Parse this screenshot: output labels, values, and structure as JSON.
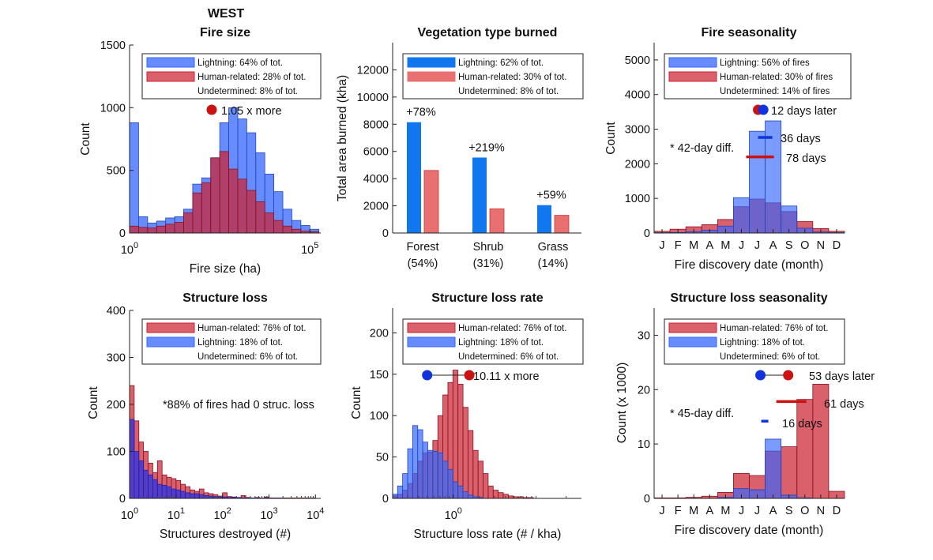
{
  "figure": {
    "title": "WEST",
    "colors": {
      "lightning": "#3366ff",
      "human": "#cc2233",
      "forest_bar": "#1177ee",
      "human_bar": "#e87070"
    }
  },
  "chart_data": [
    {
      "id": "fire_size",
      "type": "histogram",
      "title": "Fire size",
      "xlabel": "Fire size (ha)",
      "ylabel": "Count",
      "xscale": "log",
      "xlim": [
        1,
        200000
      ],
      "ylim": [
        0,
        1500
      ],
      "yticks": [
        0,
        500,
        1000,
        1500
      ],
      "xtick_labels": [
        "10^0",
        "10^5"
      ],
      "bins_log10_edges_start": 0,
      "bin_width_log10": 0.25,
      "series": [
        {
          "name": "Lightning: 64% of tot.",
          "values": [
            880,
            130,
            80,
            95,
            120,
            130,
            190,
            390,
            440,
            600,
            880,
            1000,
            910,
            800,
            640,
            470,
            330,
            190,
            100,
            60,
            30
          ]
        },
        {
          "name": "Human-related: 28% of tot.",
          "values": [
            55,
            45,
            40,
            55,
            70,
            85,
            160,
            320,
            400,
            600,
            650,
            510,
            430,
            340,
            250,
            160,
            100,
            55,
            30,
            15,
            10
          ]
        }
      ],
      "legend": [
        "Lightning: 64% of tot.",
        "Human-related: 28% of tot.",
        "Undetermined: 8% of tot."
      ],
      "annotation": "1.05 x more"
    },
    {
      "id": "vegetation",
      "type": "bar",
      "title": "Vegetation type burned",
      "ylabel": "Total area burned (kha)",
      "ylim": [
        0,
        14000
      ],
      "yticks": [
        0,
        2000,
        4000,
        6000,
        8000,
        10000,
        12000
      ],
      "categories": [
        "Forest",
        "Shrub",
        "Grass"
      ],
      "category_shares": [
        "(54%)",
        "(31%)",
        "(14%)"
      ],
      "series": [
        {
          "name": "Lightning: 62% of tot.",
          "values": [
            8150,
            5550,
            2050
          ]
        },
        {
          "name": "Human-related: 30% of tot.",
          "values": [
            4600,
            1780,
            1300
          ]
        }
      ],
      "bar_labels": [
        "+78%",
        "+219%",
        "+59%"
      ],
      "legend": [
        "Lightning: 62% of tot.",
        "Human-related: 30% of tot.",
        "Undetermined: 8% of tot."
      ]
    },
    {
      "id": "fire_seasonality",
      "type": "histogram",
      "title": "Fire seasonality",
      "xlabel": "Fire discovery date (month)",
      "ylabel": "Count",
      "ylim": [
        0,
        5500
      ],
      "yticks": [
        0,
        1000,
        2000,
        3000,
        4000,
        5000
      ],
      "categories": [
        "J",
        "F",
        "M",
        "A",
        "M",
        "J",
        "J",
        "A",
        "S",
        "O",
        "N",
        "D"
      ],
      "series": [
        {
          "name": "Lightning: 56% of fires",
          "values": [
            10,
            15,
            40,
            80,
            200,
            1020,
            2940,
            3240,
            780,
            140,
            30,
            10
          ]
        },
        {
          "name": "Human-related: 30% of fires",
          "values": [
            50,
            110,
            180,
            240,
            390,
            760,
            980,
            870,
            620,
            330,
            130,
            50
          ]
        }
      ],
      "legend": [
        "Lightning: 56% of fires",
        "Human-related: 30% of fires",
        "Undetermined: 14% of fires"
      ],
      "annotations": [
        "12 days later",
        "36 days",
        "78 days",
        "* 42-day diff."
      ],
      "medians_month": {
        "human": 6.55,
        "lightning": 6.88
      },
      "ranges": [
        {
          "start": 6.55,
          "end": 7.45,
          "value": 2760
        },
        {
          "start": 5.8,
          "end": 7.55,
          "value": 2200
        }
      ]
    },
    {
      "id": "structure_loss",
      "type": "histogram",
      "title": "Structure loss",
      "xlabel": "Structures destroyed (#)",
      "ylabel": "Count",
      "xscale": "log",
      "xlim": [
        1,
        13000
      ],
      "ylim": [
        0,
        400
      ],
      "yticks": [
        0,
        100,
        200,
        300,
        400
      ],
      "xtick_labels": [
        "10^0",
        "10^1",
        "10^2",
        "10^3",
        "10^4"
      ],
      "bins_log10_edges_start": 0,
      "bin_width_log10": 0.1,
      "series": [
        {
          "name": "Human-related: 76% of tot.",
          "values": [
            240,
            165,
            120,
            100,
            75,
            55,
            80,
            50,
            45,
            42,
            38,
            30,
            25,
            18,
            15,
            20,
            12,
            10,
            8,
            5,
            12,
            4,
            3,
            2,
            6,
            2,
            1,
            2,
            1,
            3,
            1,
            1,
            1,
            1,
            1,
            1,
            1,
            1,
            1,
            1
          ]
        },
        {
          "name": "Lightning: 18% of tot.",
          "values": [
            168,
            100,
            80,
            60,
            50,
            40,
            30,
            28,
            25,
            20,
            18,
            15,
            12,
            10,
            10,
            8,
            6,
            5,
            4,
            3,
            3,
            2,
            2,
            2,
            1,
            1,
            1,
            1,
            1,
            1,
            1,
            0,
            1,
            0,
            0,
            0,
            0,
            0,
            0,
            0
          ]
        }
      ],
      "legend": [
        "Human-related: 76% of tot.",
        "Lightning: 18% of tot.",
        "Undetermined: 6% of tot."
      ],
      "annotation": "*88% of fires had 0 struc. loss"
    },
    {
      "id": "structure_loss_rate",
      "type": "histogram",
      "title": "Structure loss rate",
      "xlabel": "Structure loss rate (# / kha)",
      "ylabel": "Count",
      "xscale": "log",
      "xlim": [
        0.2,
        30
      ],
      "ylim": [
        0,
        230
      ],
      "yticks": [
        0,
        50,
        100,
        150,
        200
      ],
      "xtick_labels": [
        "10^0"
      ],
      "bins_log10_edges_start": -0.7,
      "bin_width_log10": 0.058,
      "series": [
        {
          "name": "Human-related: 76% of tot.",
          "values": [
            3,
            5,
            10,
            18,
            30,
            45,
            55,
            56,
            70,
            100,
            125,
            140,
            155,
            138,
            110,
            82,
            58,
            45,
            30,
            15,
            10,
            7,
            5,
            3,
            2,
            2,
            1,
            1,
            0,
            0,
            0,
            0,
            0,
            0,
            0
          ]
        },
        {
          "name": "Lightning: 18% of tot.",
          "values": [
            5,
            15,
            30,
            60,
            88,
            83,
            68,
            58,
            57,
            55,
            45,
            35,
            20,
            15,
            8,
            4,
            2,
            1,
            0,
            0,
            0,
            0,
            0,
            0,
            0,
            0,
            0,
            0,
            0,
            0,
            0,
            0,
            0,
            0,
            0
          ]
        }
      ],
      "legend": [
        "Human-related: 76% of tot.",
        "Lightning: 18% of tot.",
        "Undetermined: 6% of tot."
      ],
      "annotation": "10.11 x more",
      "medians": {
        "lightning": 0.5,
        "human": 1.53
      }
    },
    {
      "id": "structure_loss_seasonality",
      "type": "histogram",
      "title": "Structure loss seasonality",
      "xlabel": "Fire discovery date (month)",
      "ylabel": "Count (x 1000)",
      "ylim": [
        0,
        35
      ],
      "yticks": [
        0,
        10,
        20,
        30
      ],
      "categories": [
        "J",
        "F",
        "M",
        "A",
        "M",
        "J",
        "J",
        "A",
        "S",
        "O",
        "N",
        "D"
      ],
      "series": [
        {
          "name": "Human-related: 76% of tot.",
          "values": [
            0.1,
            0.1,
            0.2,
            0.4,
            1.1,
            4.6,
            4.2,
            8.7,
            9.5,
            18.2,
            21.0,
            1.3
          ]
        },
        {
          "name": "Lightning: 18% of tot.",
          "values": [
            0,
            0,
            0,
            0,
            0.2,
            1.8,
            1.6,
            10.9,
            0.6,
            0.1,
            0,
            0
          ]
        }
      ],
      "legend": [
        "Human-related: 76% of tot.",
        "Lightning: 18% of tot.",
        "Undetermined: 6% of tot."
      ],
      "annotations": [
        "53 days later",
        "61 days",
        "16 days",
        "* 45-day diff."
      ],
      "medians_month": {
        "lightning": 6.7,
        "human": 8.45
      },
      "ranges": [
        {
          "start": 7.7,
          "end": 9.6,
          "value": 17.8
        },
        {
          "start": 6.75,
          "end": 7.2,
          "value": 14.2
        }
      ]
    }
  ]
}
